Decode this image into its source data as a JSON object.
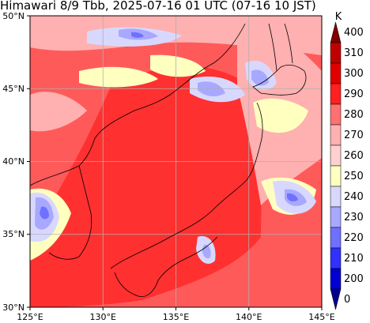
{
  "title": "Himawari 8/9 Tbb, 2025-07-16 01 UTC (07-16 10 JST)",
  "map": {
    "lon_range": [
      125,
      145
    ],
    "lat_range": [
      30,
      50
    ],
    "lon_ticks": [
      "125°E",
      "130°E",
      "135°E",
      "140°E",
      "145°E"
    ],
    "lat_ticks": [
      "50°N",
      "45°N",
      "40°N",
      "35°N",
      "30°N"
    ],
    "gridlines": true
  },
  "colorbar": {
    "unit": "K",
    "levels": [
      "400",
      "310",
      "300",
      "290",
      "280",
      "270",
      "260",
      "250",
      "240",
      "230",
      "220",
      "210",
      "200",
      "0"
    ],
    "colors": [
      "#800000",
      "#c00000",
      "#e00000",
      "#ff2020",
      "#ff7070",
      "#ffb0b0",
      "#ffd0d0",
      "#ffffc0",
      "#d8d8ff",
      "#a8a8ff",
      "#7070ff",
      "#3030ff",
      "#0000d0",
      "#000090"
    ]
  }
}
